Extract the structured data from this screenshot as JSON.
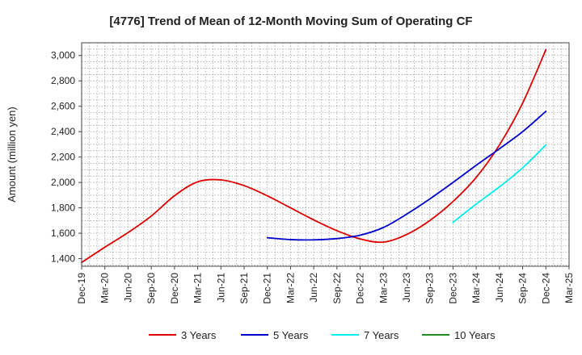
{
  "chart_data": {
    "type": "line",
    "title": "[4776]  Trend of Mean of 12-Month Moving Sum of Operating CF",
    "xlabel": "",
    "ylabel": "Amount (million yen)",
    "ylim": [
      1340,
      3100
    ],
    "yticks": [
      1400,
      1600,
      1800,
      2000,
      2200,
      2400,
      2600,
      2800,
      3000
    ],
    "ytick_labels": [
      "1,400",
      "1,600",
      "1,800",
      "2,000",
      "2,200",
      "2,400",
      "2,600",
      "2,800",
      "3,000"
    ],
    "x_categories": [
      "Dec-19",
      "Mar-20",
      "Jun-20",
      "Sep-20",
      "Dec-20",
      "Mar-21",
      "Jun-21",
      "Sep-21",
      "Dec-21",
      "Mar-22",
      "Jun-22",
      "Sep-22",
      "Dec-22",
      "Mar-23",
      "Jun-23",
      "Sep-23",
      "Dec-23",
      "Mar-24",
      "Jun-24",
      "Sep-24",
      "Dec-24",
      "Mar-25"
    ],
    "grid": true,
    "legend_position": "bottom",
    "series": [
      {
        "name": "3 Years",
        "color": "#dd0000",
        "x": [
          0,
          1,
          2,
          3,
          4,
          5,
          6,
          7,
          8,
          9,
          10,
          11,
          12,
          13,
          14,
          15,
          16,
          17,
          18,
          19,
          20
        ],
        "values": [
          1370,
          1490,
          1605,
          1735,
          1895,
          2005,
          2020,
          1975,
          1895,
          1800,
          1705,
          1620,
          1555,
          1530,
          1590,
          1700,
          1850,
          2040,
          2295,
          2625,
          3045
        ]
      },
      {
        "name": "5 Years",
        "color": "#0000cc",
        "x": [
          8,
          9,
          10,
          11,
          12,
          13,
          14,
          15,
          16,
          17,
          18,
          19,
          20
        ],
        "values": [
          1565,
          1550,
          1548,
          1558,
          1585,
          1645,
          1750,
          1870,
          2000,
          2135,
          2265,
          2400,
          2560
        ]
      },
      {
        "name": "7 Years",
        "color": "#00eeee",
        "x": [
          16,
          17,
          18,
          19,
          20
        ],
        "values": [
          1685,
          1830,
          1965,
          2115,
          2295
        ]
      },
      {
        "name": "10 Years",
        "color": "#228b22",
        "x": [],
        "values": []
      }
    ]
  }
}
